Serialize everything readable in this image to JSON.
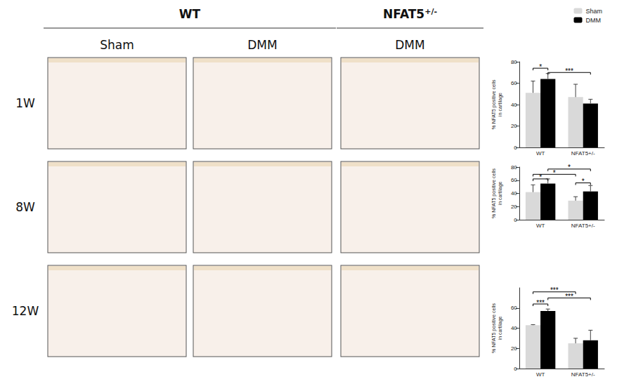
{
  "figure": {
    "groups": [
      {
        "label": "WT",
        "columns": [
          0,
          1
        ]
      },
      {
        "label": "NFAT5",
        "sup": "+/-",
        "columns": [
          2
        ]
      }
    ],
    "columns": [
      "Sham",
      "DMM",
      "DMM"
    ],
    "rows": [
      "1W",
      "8W",
      "12W"
    ]
  },
  "chart_data": [
    {
      "type": "bar",
      "categories": [
        "WT",
        "NFAT5+/-"
      ],
      "series": [
        {
          "name": "Sham",
          "color": "#d9d9d9",
          "values": [
            51,
            47
          ],
          "errors": [
            11,
            12
          ]
        },
        {
          "name": "DMM",
          "color": "#000000",
          "values": [
            64,
            41
          ],
          "errors": [
            5,
            4
          ]
        }
      ],
      "ylabel": "% NFAT5 positive cells\nin cartilage",
      "ylim": [
        0,
        80
      ],
      "yticks": [
        0,
        20,
        40,
        60,
        80
      ],
      "legend": "top-right",
      "brackets": [
        {
          "from": [
            "WT",
            "Sham"
          ],
          "to": [
            "WT",
            "DMM"
          ],
          "y": 74,
          "label": "*"
        },
        {
          "from": [
            "WT",
            "DMM"
          ],
          "to": [
            "NFAT5+/-",
            "DMM"
          ],
          "y": 70,
          "label": "***"
        }
      ]
    },
    {
      "type": "bar",
      "categories": [
        "WT",
        "NFAT5+/-"
      ],
      "series": [
        {
          "name": "Sham",
          "color": "#d9d9d9",
          "values": [
            42,
            29
          ],
          "errors": [
            11,
            6
          ]
        },
        {
          "name": "DMM",
          "color": "#000000",
          "values": [
            55,
            43
          ],
          "errors": [
            7,
            9
          ]
        }
      ],
      "ylabel": "% NFAT5 positive cells\nin cartilage",
      "ylim": [
        0,
        80
      ],
      "yticks": [
        0,
        20,
        40,
        60,
        80
      ],
      "brackets": [
        {
          "from": [
            "WT",
            "Sham"
          ],
          "to": [
            "WT",
            "DMM"
          ],
          "y": 62,
          "label": "*"
        },
        {
          "from": [
            "WT",
            "Sham"
          ],
          "to": [
            "NFAT5+/-",
            "Sham"
          ],
          "y": 69,
          "label": "*"
        },
        {
          "from": [
            "WT",
            "DMM"
          ],
          "to": [
            "NFAT5+/-",
            "DMM"
          ],
          "y": 77,
          "label": "*"
        },
        {
          "from": [
            "NFAT5+/-",
            "Sham"
          ],
          "to": [
            "NFAT5+/-",
            "DMM"
          ],
          "y": 56,
          "label": "*"
        }
      ]
    },
    {
      "type": "bar",
      "categories": [
        "WT",
        "NFAT5+/-"
      ],
      "series": [
        {
          "name": "Sham",
          "color": "#d9d9d9",
          "values": [
            43,
            25
          ],
          "errors": [
            0.5,
            5
          ]
        },
        {
          "name": "DMM",
          "color": "#000000",
          "values": [
            57,
            28
          ],
          "errors": [
            2,
            10
          ]
        }
      ],
      "ylabel": "% NFAT5 positive cells\nin cartilage",
      "ylim": [
        0,
        80
      ],
      "yticks": [
        0,
        20,
        40,
        60
      ],
      "brackets": [
        {
          "from": [
            "WT",
            "Sham"
          ],
          "to": [
            "WT",
            "DMM"
          ],
          "y": 64,
          "label": "***"
        },
        {
          "from": [
            "WT",
            "Sham"
          ],
          "to": [
            "NFAT5+/-",
            "Sham"
          ],
          "y": 76,
          "label": "***"
        },
        {
          "from": [
            "WT",
            "DMM"
          ],
          "to": [
            "NFAT5+/-",
            "DMM"
          ],
          "y": 70,
          "label": "***"
        }
      ]
    }
  ]
}
